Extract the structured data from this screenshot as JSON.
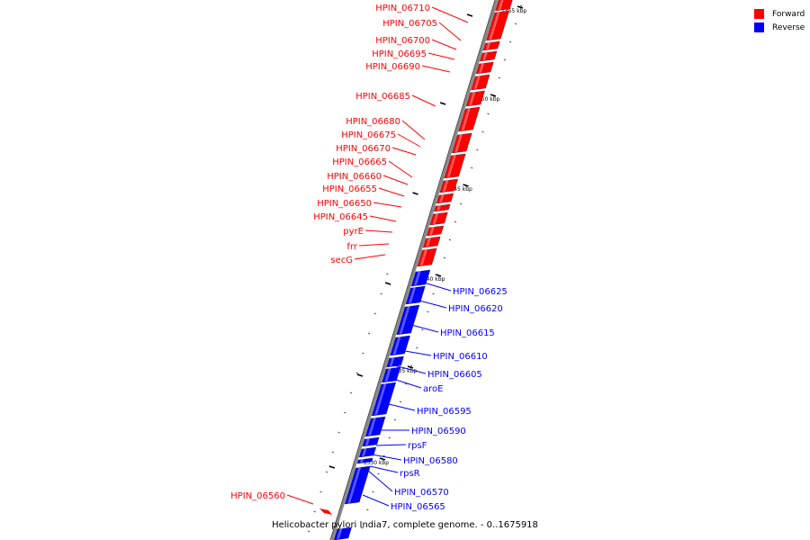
{
  "colors": {
    "forward": "#ff0000",
    "reverse": "#0000ff",
    "backbone": "#888888"
  },
  "legend": {
    "forward_label": "Forward",
    "reverse_label": "Reverse"
  },
  "caption": "Helicobacter pylori India7, complete genome. - 0..1675918",
  "ticks": [
    {
      "kbp": 1355,
      "label": "1355 kbp"
    },
    {
      "kbp": 1350,
      "label": "1350 kbp"
    },
    {
      "kbp": 1345,
      "label": "1345 kbp"
    },
    {
      "kbp": 1340,
      "label": "1340 kbp"
    },
    {
      "kbp": 1335,
      "label": "1335 kbp"
    },
    {
      "kbp": 1330,
      "label": "1330 kbp"
    }
  ],
  "forward_genes": [
    "HPIN_06710",
    "HPIN_06705",
    "HPIN_06700",
    "HPIN_06695",
    "HPIN_06690",
    "HPIN_06685",
    "HPIN_06680",
    "HPIN_06675",
    "HPIN_06670",
    "HPIN_06665",
    "HPIN_06660",
    "HPIN_06655",
    "HPIN_06650",
    "HPIN_06645",
    "pyrE",
    "frr",
    "secG",
    "HPIN_06560"
  ],
  "reverse_genes": [
    "HPIN_06625",
    "HPIN_06620",
    "HPIN_06615",
    "HPIN_06610",
    "HPIN_06605",
    "aroE",
    "HPIN_06595",
    "HPIN_06590",
    "rpsF",
    "HPIN_06580",
    "rpsR",
    "HPIN_06570",
    "HPIN_06565"
  ]
}
